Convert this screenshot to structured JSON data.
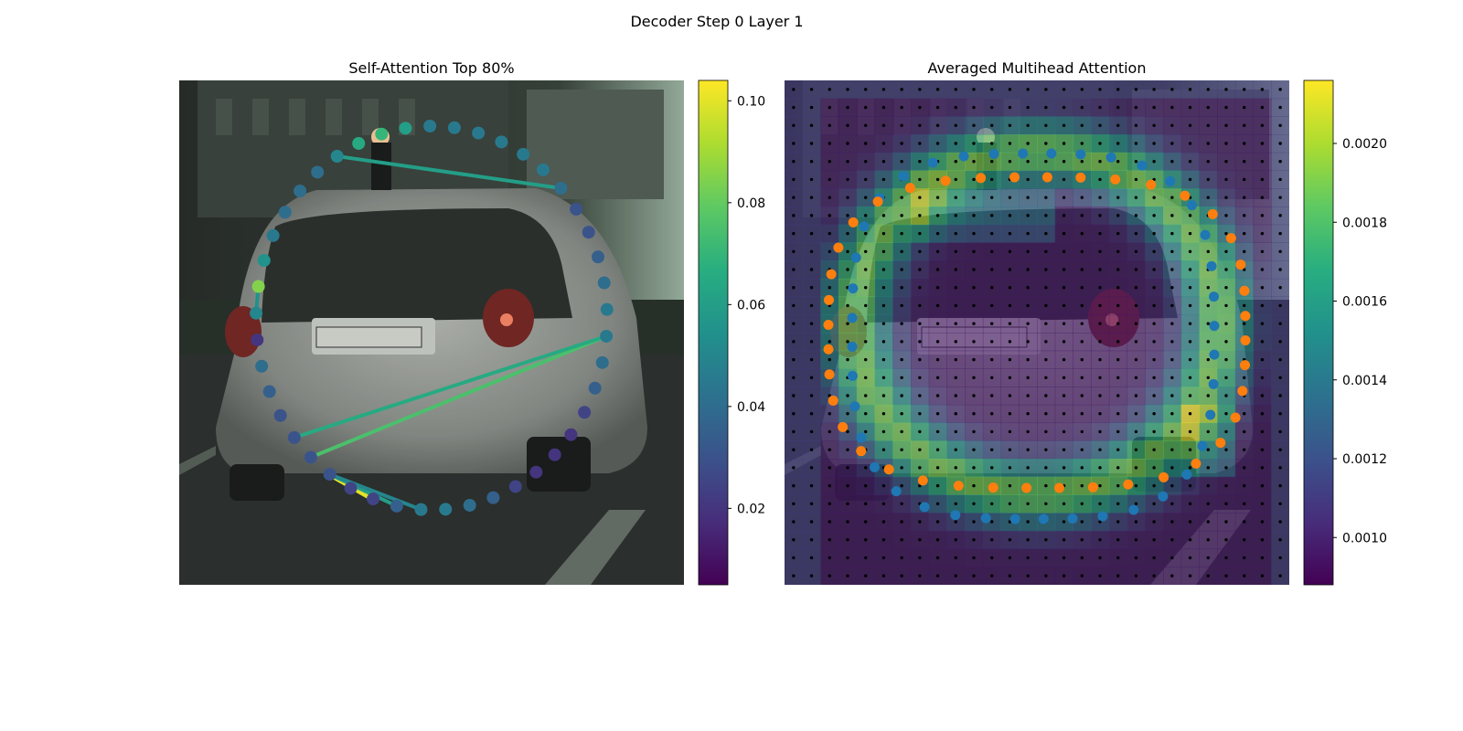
{
  "suptitle": "Decoder Step 0 Layer 1",
  "colors": {
    "node_orange": "#ff7f0e",
    "node_blue": "#1f77b4",
    "grid_dot": "#000000",
    "colormap": "viridis"
  },
  "chart_data": [
    {
      "type": "scatter",
      "title": "Self-Attention Top 80%",
      "background": "camera image of a silver hatchback car (rear view) on a street",
      "node_values": [
        0.045,
        0.045,
        0.045,
        0.045,
        0.045,
        0.04,
        0.03,
        0.03,
        0.035,
        0.04,
        0.045,
        0.045,
        0.04,
        0.035,
        0.025,
        0.02,
        0.02,
        0.02,
        0.025,
        0.035,
        0.04,
        0.045,
        0.045,
        0.035,
        0.025,
        0.025,
        0.03,
        0.03,
        0.03,
        0.03,
        0.035,
        0.04,
        0.02,
        0.05,
        0.085,
        0.055,
        0.045,
        0.04,
        0.04,
        0.04,
        0.05,
        0.065,
        0.07,
        0.06,
        0.045
      ],
      "edges": [
        {
          "from": 11,
          "to": 27,
          "value": 0.075
        },
        {
          "from": 11,
          "to": 28,
          "value": 0.065
        },
        {
          "from": 5,
          "to": 40,
          "value": 0.06
        },
        {
          "from": 33,
          "to": 34,
          "value": 0.055
        },
        {
          "from": 26,
          "to": 24,
          "value": 0.1
        },
        {
          "from": 26,
          "to": 23,
          "value": 0.06
        },
        {
          "from": 26,
          "to": 22,
          "value": 0.05
        }
      ],
      "colorbar": {
        "ticks": [
          "0.02",
          "0.04",
          "0.06",
          "0.08",
          "0.10"
        ],
        "min": 0.005,
        "max": 0.104
      }
    },
    {
      "type": "heatmap",
      "title": "Averaged Multihead Attention",
      "background": "same camera image, darkened with attention heatmap overlay",
      "heatmap": {
        "rows": 28,
        "cols": 28,
        "peak_value": 0.0021
      },
      "series": [
        {
          "points": "orange",
          "count": 40
        },
        {
          "points": "blue",
          "count": 40
        }
      ],
      "colorbar": {
        "ticks": [
          "0.0010",
          "0.0012",
          "0.0014",
          "0.0016",
          "0.0018",
          "0.0020"
        ],
        "min": 0.00088,
        "max": 0.00216
      }
    }
  ]
}
